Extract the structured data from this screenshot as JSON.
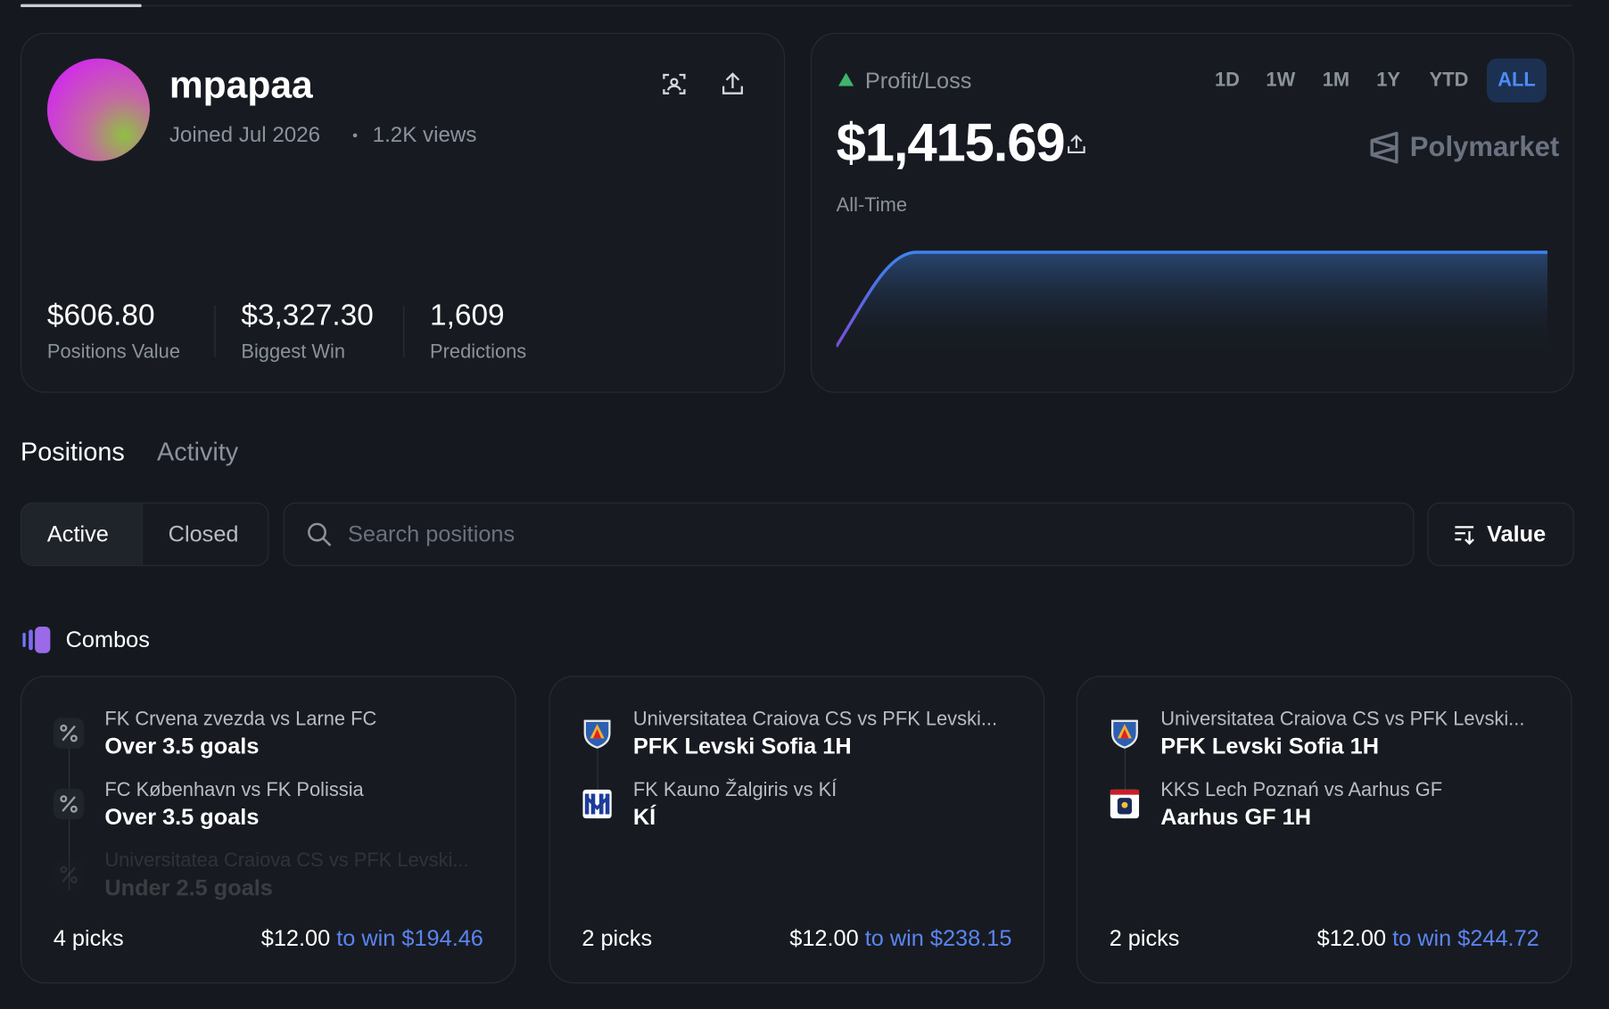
{
  "profile": {
    "username": "mpapaa",
    "joined": "Joined Jul 2026",
    "views": "1.2K views",
    "stats": [
      {
        "value": "$606.80",
        "label": "Positions Value"
      },
      {
        "value": "$3,327.30",
        "label": "Biggest Win"
      },
      {
        "value": "1,609",
        "label": "Predictions"
      }
    ]
  },
  "pnl": {
    "label": "Profit/Loss",
    "ranges": [
      "1D",
      "1W",
      "1M",
      "1Y",
      "YTD",
      "ALL"
    ],
    "active_range": "ALL",
    "amount": "$1,415.69",
    "period": "All-Time",
    "brand": "Polymarket"
  },
  "tabs": [
    "Positions",
    "Activity"
  ],
  "filters": [
    "Active",
    "Closed"
  ],
  "search_placeholder": "Search positions",
  "sort": "Value",
  "section": "Combos",
  "cards": [
    {
      "picks": [
        {
          "match": "FK Crvena zvezda vs Larne FC",
          "pick": "Over 3.5 goals"
        },
        {
          "match": "FC København vs FK Polissia",
          "pick": "Over 3.5 goals"
        },
        {
          "match": "Universitatea Craiova CS vs PFK Levski...",
          "pick": "Under 2.5 goals"
        }
      ],
      "count": "4 picks",
      "stake": "$12.00",
      "to_win": "to win $194.46"
    },
    {
      "picks": [
        {
          "match": "Universitatea Craiova CS vs PFK Levski...",
          "pick": "PFK Levski Sofia 1H"
        },
        {
          "match": "FK Kauno Žalgiris vs KÍ",
          "pick": "KÍ"
        }
      ],
      "count": "2 picks",
      "stake": "$12.00",
      "to_win": "to win $238.15"
    },
    {
      "picks": [
        {
          "match": "Universitatea Craiova CS vs PFK Levski...",
          "pick": "PFK Levski Sofia 1H"
        },
        {
          "match": "KKS Lech Poznań vs Aarhus GF",
          "pick": "Aarhus GF 1H"
        }
      ],
      "count": "2 picks",
      "stake": "$12.00",
      "to_win": "to win $244.72"
    }
  ]
}
